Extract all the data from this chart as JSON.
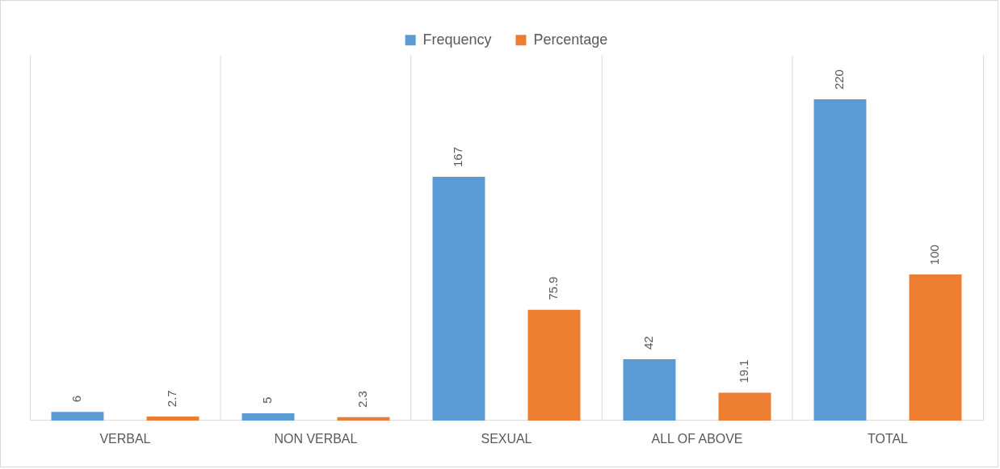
{
  "chart_data": {
    "type": "bar",
    "categories": [
      "VERBAL",
      "NON VERBAL",
      "SEXUAL",
      "ALL OF ABOVE",
      "TOTAL"
    ],
    "series": [
      {
        "name": "Frequency",
        "color": "#5b9bd5",
        "values": [
          6,
          5,
          167,
          42,
          220
        ]
      },
      {
        "name": "Percentage",
        "color": "#ed7d31",
        "values": [
          2.7,
          2.3,
          75.9,
          19.1,
          100
        ]
      }
    ],
    "data_labels": true,
    "grid": "x",
    "legend": "top"
  }
}
